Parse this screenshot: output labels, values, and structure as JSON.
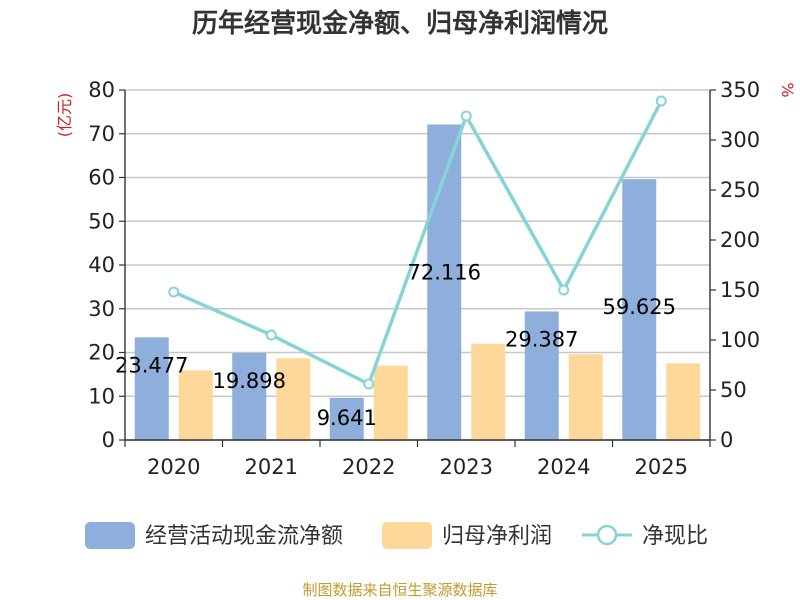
{
  "chart_data": {
    "type": "bar",
    "title": "历年经营现金净额、归母净利润情况",
    "categories": [
      "2020",
      "2021",
      "2022",
      "2023",
      "2024",
      "2025"
    ],
    "series": [
      {
        "name": "经营活动现金流净额",
        "kind": "bar",
        "axis": "left",
        "color": "#8eaedb",
        "values": [
          23.477,
          19.898,
          9.641,
          72.116,
          29.387,
          59.625
        ],
        "labels": [
          "23.477",
          "19.898",
          "9.641",
          "72.116",
          "29.387",
          "59.625"
        ]
      },
      {
        "name": "归母净利润",
        "kind": "bar",
        "axis": "left",
        "color": "#fdd89a",
        "values": [
          15.9,
          18.7,
          17.0,
          22.0,
          19.6,
          17.5
        ]
      },
      {
        "name": "净现比",
        "kind": "line",
        "axis": "right",
        "color": "#86d3d8",
        "values": [
          148,
          105,
          56,
          324,
          150,
          339
        ]
      }
    ],
    "y_left": {
      "label": "(亿元)",
      "min": 0,
      "max": 80,
      "ticks": [
        0,
        10,
        20,
        30,
        40,
        50,
        60,
        70,
        80
      ]
    },
    "y_right": {
      "label": "%",
      "min": 0,
      "max": 350,
      "ticks": [
        0,
        50,
        100,
        150,
        200,
        250,
        300,
        350
      ]
    },
    "grid": true,
    "legend_position": "bottom",
    "source": "制图数据来自恒生聚源数据库"
  }
}
